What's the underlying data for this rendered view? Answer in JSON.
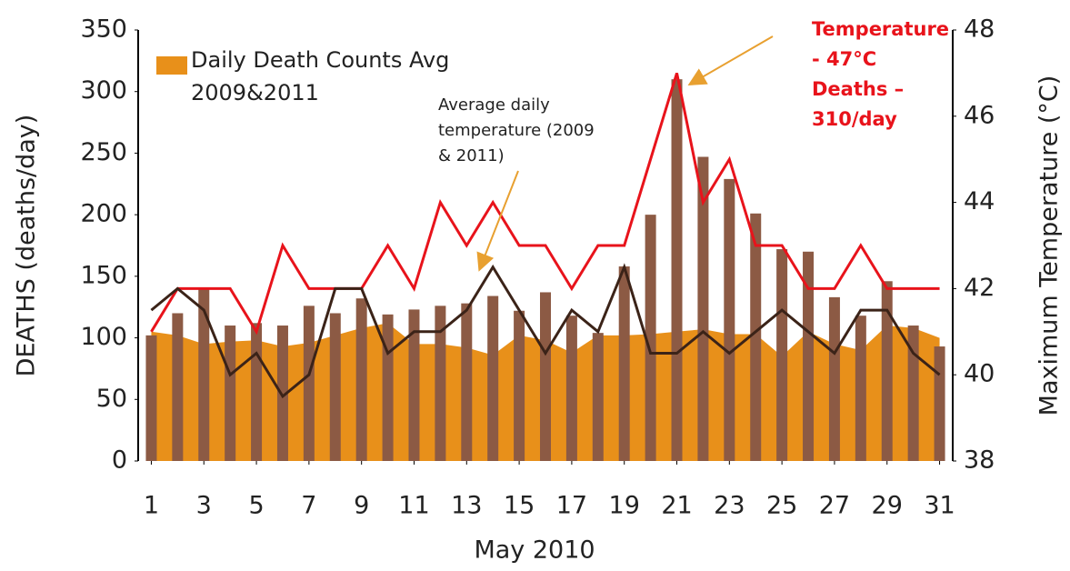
{
  "chart_data": {
    "type": "bar",
    "x_label": "May 2010",
    "y_label": "DEATHS (deaths/day)",
    "y2_label": "Maximum Temperature (°C)",
    "x": [
      1,
      2,
      3,
      4,
      5,
      6,
      7,
      8,
      9,
      10,
      11,
      12,
      13,
      14,
      15,
      16,
      17,
      18,
      19,
      20,
      21,
      22,
      23,
      24,
      25,
      26,
      27,
      28,
      29,
      30,
      31
    ],
    "xlim": [
      0.5,
      31.5
    ],
    "xticks": [
      1,
      3,
      5,
      7,
      9,
      11,
      13,
      15,
      17,
      19,
      21,
      23,
      25,
      27,
      29,
      31
    ],
    "ylim": [
      0,
      350
    ],
    "yticks": [
      0,
      50,
      100,
      150,
      200,
      250,
      300,
      350
    ],
    "y2lim": [
      38,
      48
    ],
    "y2ticks": [
      38,
      40,
      42,
      44,
      46,
      48
    ],
    "grid": false,
    "legend": "top-left",
    "series": [
      {
        "name": "Daily Death Counts Avg 2009&2011",
        "kind": "area",
        "color": "#e8901a",
        "values": [
          105,
          102,
          95,
          97,
          98,
          93,
          96,
          102,
          108,
          112,
          95,
          95,
          92,
          86,
          102,
          98,
          88,
          102,
          102,
          103,
          105,
          107,
          103,
          103,
          85,
          105,
          95,
          90,
          110,
          108,
          100
        ]
      },
      {
        "kind": "bar",
        "color": "#8c5a44",
        "values": [
          102,
          120,
          140,
          110,
          112,
          110,
          126,
          120,
          132,
          119,
          123,
          126,
          128,
          134,
          122,
          137,
          118,
          104,
          158,
          200,
          310,
          247,
          229,
          201,
          172,
          170,
          133,
          118,
          146,
          110,
          93
        ]
      },
      {
        "kind": "line",
        "axis": "y2",
        "color": "#e8131b",
        "values": [
          41,
          42,
          42,
          42,
          41,
          43,
          42,
          42,
          42,
          43,
          42,
          44,
          43,
          44,
          43,
          43,
          42,
          43,
          43,
          45,
          47,
          44,
          45,
          43,
          43,
          42,
          42,
          43,
          42,
          42,
          42
        ]
      },
      {
        "kind": "line",
        "axis": "y2",
        "color": "#3b2318",
        "values": [
          41.5,
          42,
          41.5,
          40,
          40.5,
          39.5,
          40,
          42,
          42,
          40.5,
          41,
          41,
          41.5,
          42.5,
          41.5,
          40.5,
          41.5,
          41,
          42.5,
          40.5,
          40.5,
          41,
          40.5,
          41,
          41.5,
          41,
          40.5,
          41.5,
          41.5,
          40.5,
          40
        ]
      }
    ],
    "annotations": [
      {
        "lines": [
          "Average daily",
          "temperature (2009",
          "& 2011)"
        ]
      },
      {
        "lines": [
          "Temperature",
          "- 47°C",
          "Deaths –",
          "310/day"
        ]
      }
    ]
  }
}
